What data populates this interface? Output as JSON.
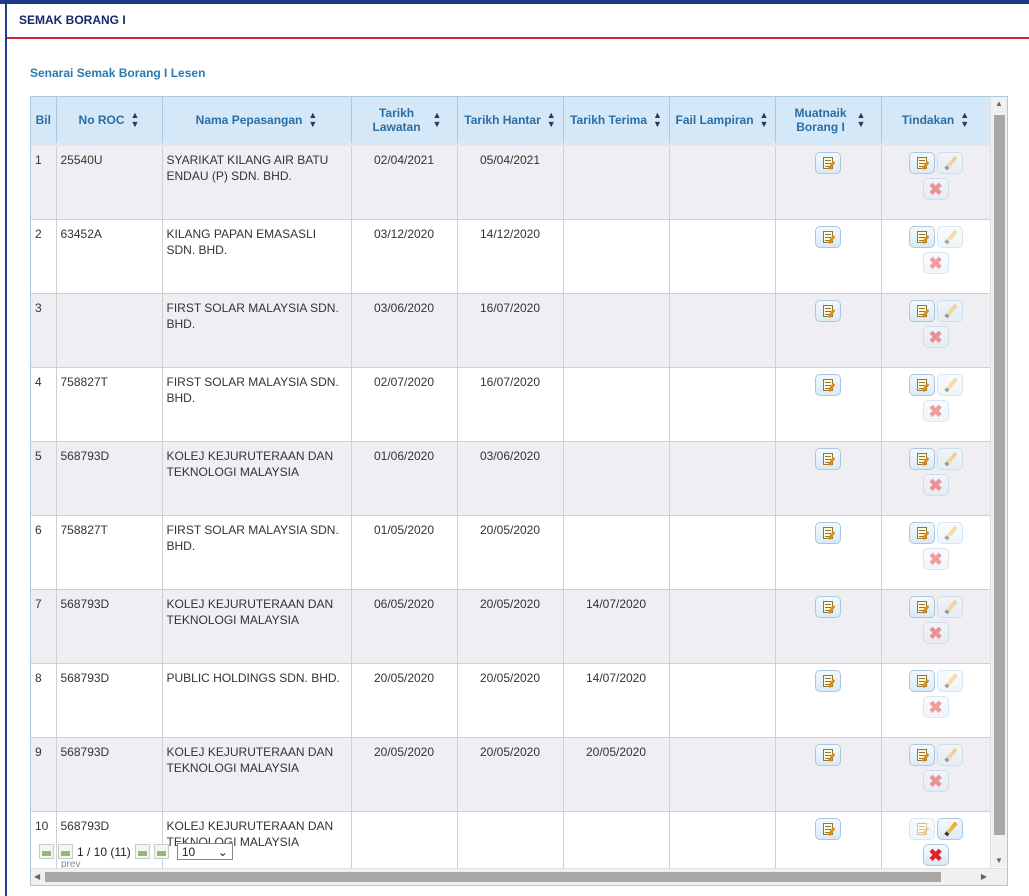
{
  "header": {
    "title": "SEMAK BORANG I"
  },
  "section": {
    "subtitle": "Senarai Semak Borang I Lesen"
  },
  "columns": [
    "Bil",
    "No ROC",
    "Nama Pepasangan",
    "Tarikh Lawatan",
    "Tarikh Hantar",
    "Tarikh Terima",
    "Fail Lampiran",
    "Muatnaik Borang I",
    "Tindakan"
  ],
  "rows": [
    {
      "bil": "1",
      "roc": "25540U",
      "nama": "SYARIKAT KILANG AIR BATU ENDAU (P) SDN. BHD.",
      "lawatan": "02/04/2021",
      "hantar": "05/04/2021",
      "terima": "",
      "fail": ""
    },
    {
      "bil": "2",
      "roc": "63452A",
      "nama": "KILANG PAPAN EMASASLI SDN. BHD.",
      "lawatan": "03/12/2020",
      "hantar": "14/12/2020",
      "terima": "",
      "fail": ""
    },
    {
      "bil": "3",
      "roc": "",
      "nama": "FIRST SOLAR MALAYSIA SDN. BHD.",
      "lawatan": "03/06/2020",
      "hantar": "16/07/2020",
      "terima": "",
      "fail": ""
    },
    {
      "bil": "4",
      "roc": "758827T",
      "nama": "FIRST SOLAR MALAYSIA SDN. BHD.",
      "lawatan": "02/07/2020",
      "hantar": "16/07/2020",
      "terima": "",
      "fail": ""
    },
    {
      "bil": "5",
      "roc": "568793D",
      "nama": "KOLEJ KEJURUTERAAN DAN TEKNOLOGI MALAYSIA",
      "lawatan": "01/06/2020",
      "hantar": "03/06/2020",
      "terima": "",
      "fail": ""
    },
    {
      "bil": "6",
      "roc": "758827T",
      "nama": "FIRST SOLAR MALAYSIA SDN. BHD.",
      "lawatan": "01/05/2020",
      "hantar": "20/05/2020",
      "terima": "",
      "fail": ""
    },
    {
      "bil": "7",
      "roc": "568793D",
      "nama": "KOLEJ KEJURUTERAAN DAN TEKNOLOGI MALAYSIA",
      "lawatan": "06/05/2020",
      "hantar": "20/05/2020",
      "terima": "14/07/2020",
      "fail": ""
    },
    {
      "bil": "8",
      "roc": "568793D",
      "nama": "PUBLIC HOLDINGS SDN. BHD.",
      "lawatan": "20/05/2020",
      "hantar": "20/05/2020",
      "terima": "14/07/2020",
      "fail": ""
    },
    {
      "bil": "9",
      "roc": "568793D",
      "nama": "KOLEJ KEJURUTERAAN DAN TEKNOLOGI MALAYSIA",
      "lawatan": "20/05/2020",
      "hantar": "20/05/2020",
      "terima": "20/05/2020",
      "fail": ""
    },
    {
      "bil": "10",
      "roc": "568793D",
      "nama": "KOLEJ KEJURUTERAAN DAN TEKNOLOGI MALAYSIA",
      "lawatan": "",
      "hantar": "",
      "terima": "",
      "fail": ""
    }
  ],
  "pager": {
    "info": "1 / 10 (11)",
    "page_size": "10",
    "prev_label": "prev"
  },
  "colors": {
    "accent": "#1f3c88",
    "header_underline": "#d9262e",
    "grid_header_bg": "#d4e8f7",
    "link_text": "#2a7ab0"
  },
  "icons": {
    "upload": "edit-document-icon",
    "view": "edit-document-icon",
    "edit": "pencil-icon",
    "delete": "delete-x-icon"
  }
}
